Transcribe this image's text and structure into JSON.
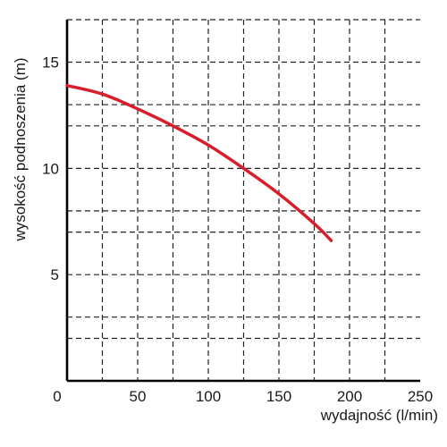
{
  "chart_data": {
    "type": "line",
    "title": "",
    "xlabel": "wydajność (l/min)",
    "ylabel": "wysokość podnoszenia (m)",
    "xlim": [
      0,
      250
    ],
    "ylim": [
      0,
      17
    ],
    "x_ticks": [
      0,
      50,
      100,
      150,
      200,
      250
    ],
    "y_ticks": [
      5,
      10,
      15
    ],
    "x_grid": [
      25,
      50,
      75,
      100,
      125,
      150,
      175,
      200,
      225
    ],
    "y_grid": [
      2,
      3,
      5,
      7,
      8,
      10,
      12,
      13,
      15,
      17
    ],
    "grid": true,
    "legend": "none",
    "series": [
      {
        "color": "#d81e2b",
        "x": [
          0,
          25,
          50,
          75,
          100,
          125,
          150,
          175,
          187
        ],
        "y": [
          13.9,
          13.5,
          12.8,
          12.0,
          11.1,
          10.0,
          8.8,
          7.4,
          6.6
        ]
      }
    ]
  }
}
